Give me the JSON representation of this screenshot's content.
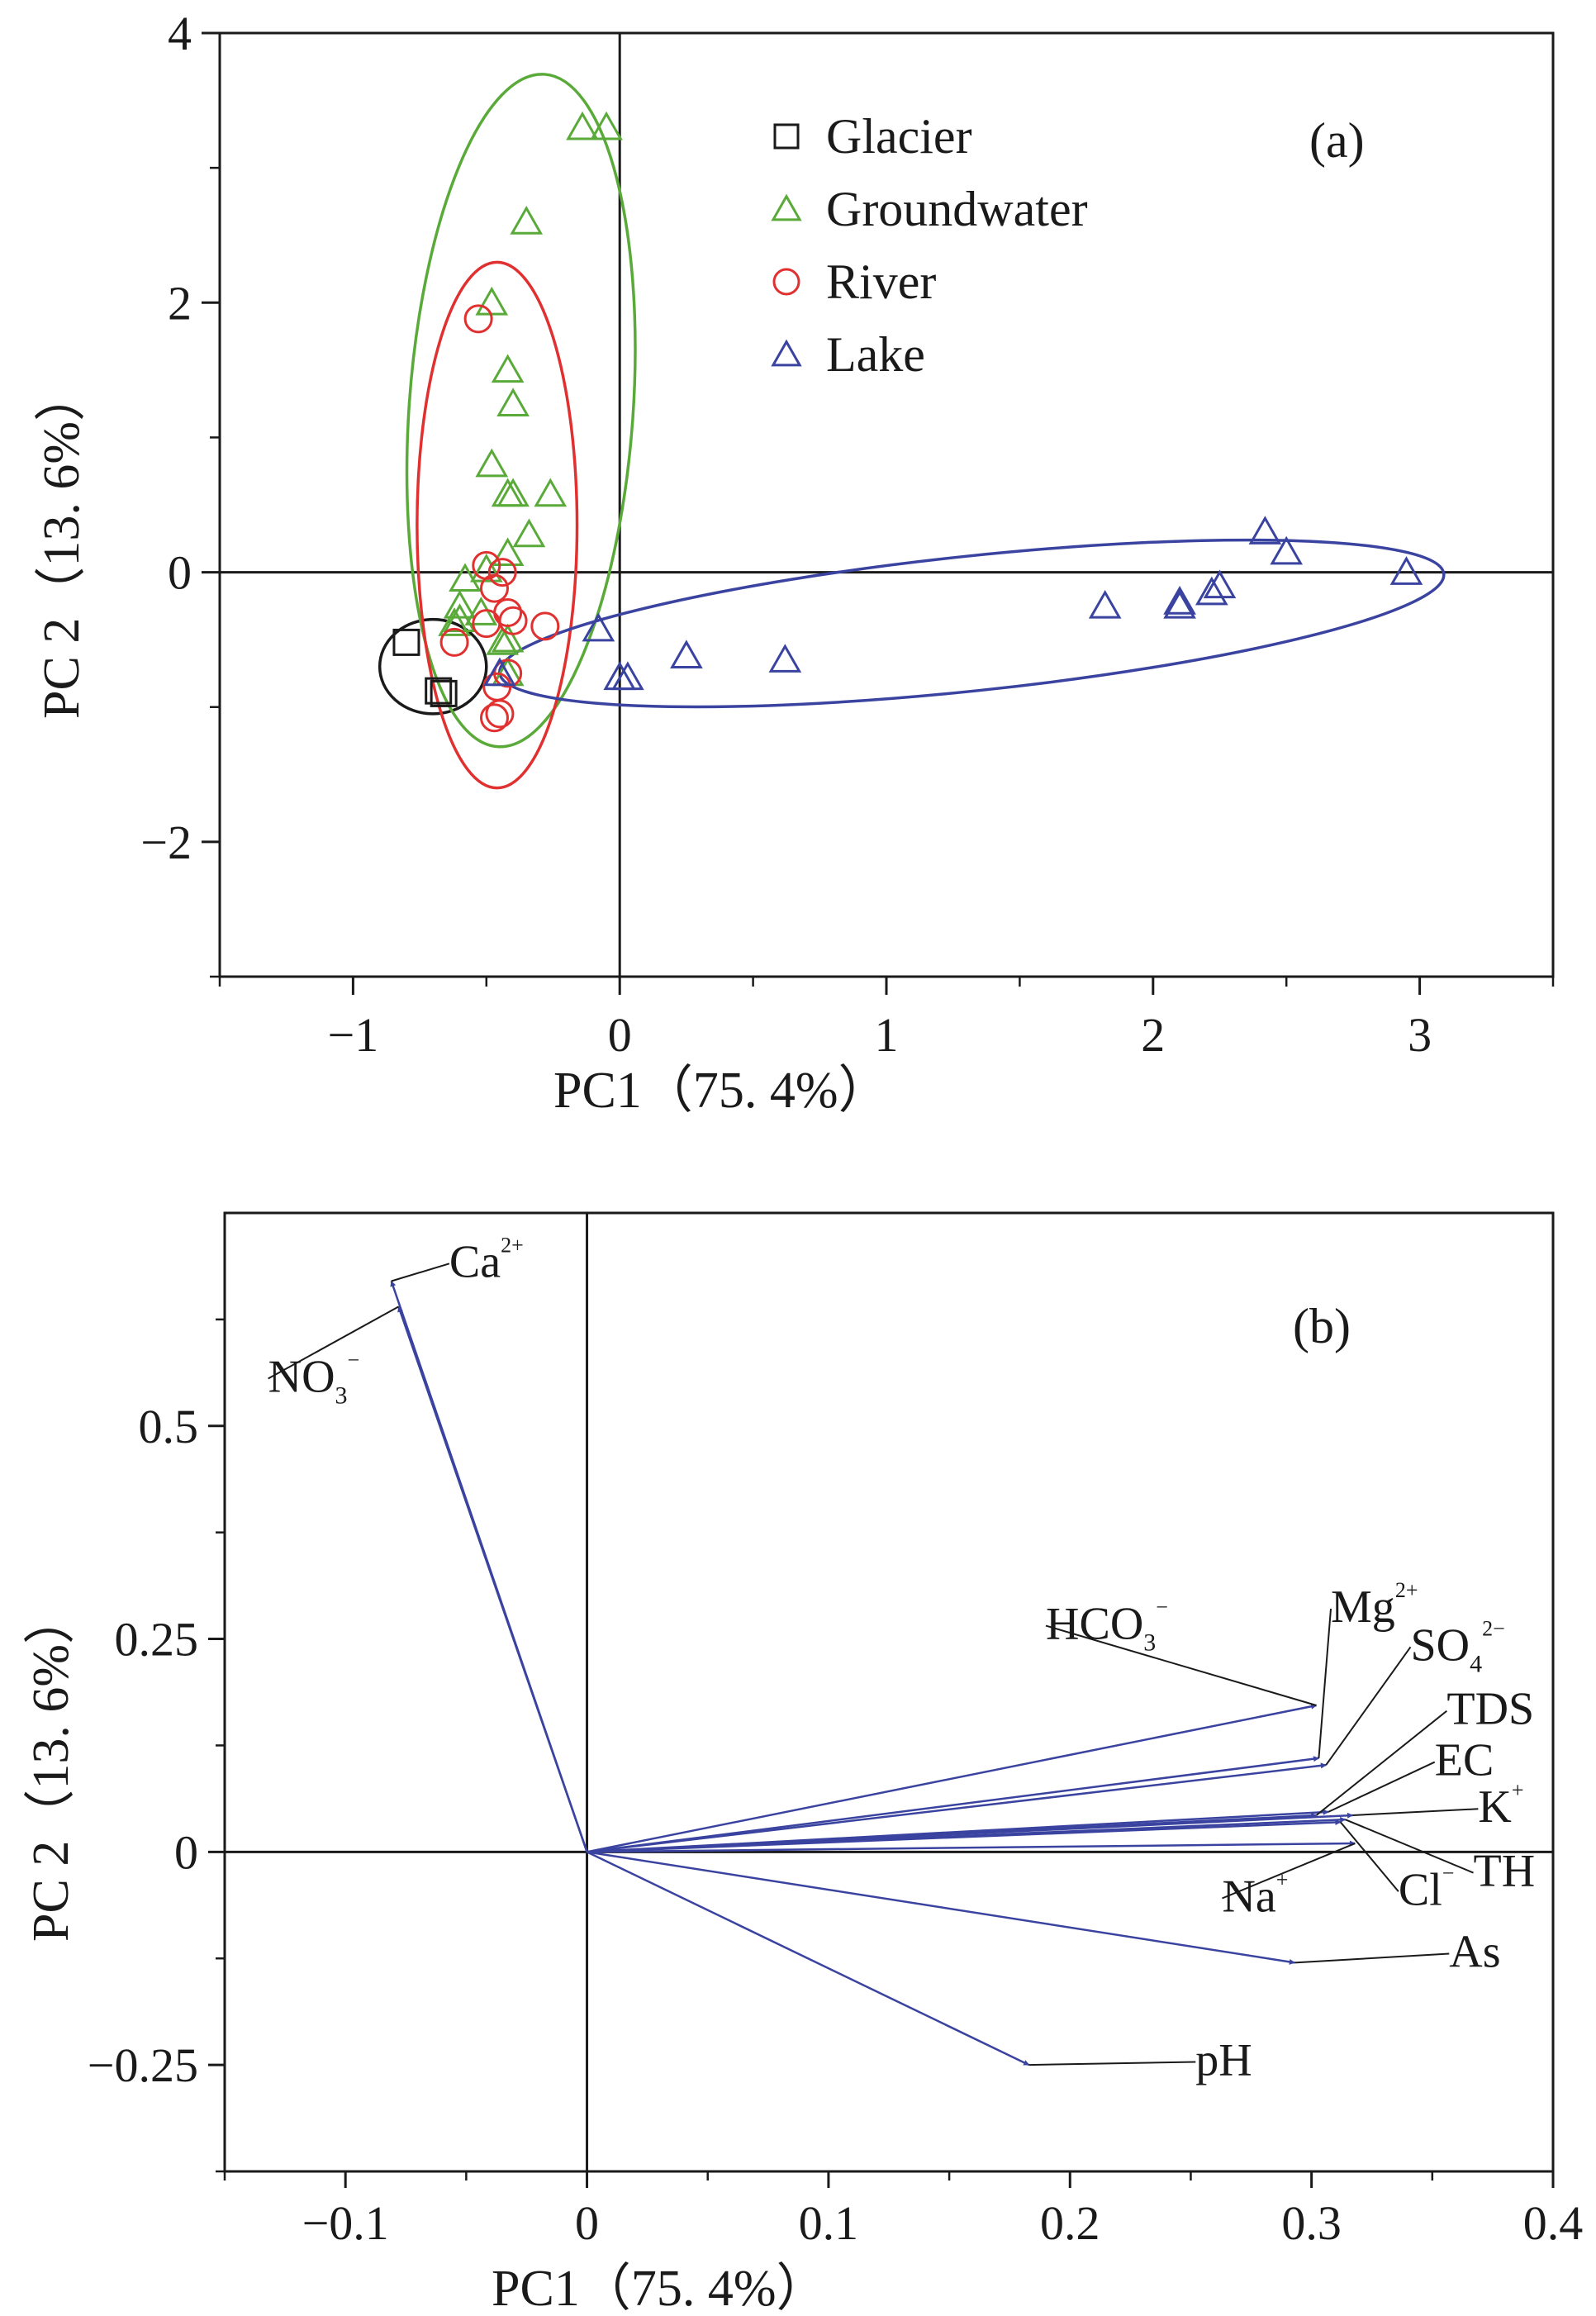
{
  "colors": {
    "glacier": "#1a1a1a",
    "groundwater": "#5aaa3a",
    "river": "#e03030",
    "lake": "#3a43a0",
    "axis": "#1a1a1a",
    "arrow": "#3a43a0"
  },
  "chart_data": [
    {
      "type": "scatter",
      "panel_label": "(a)",
      "xlabel": "PC1（75. 4%）",
      "ylabel": "PC 2（13. 6%）",
      "xlim": [
        -1.5,
        3.5
      ],
      "ylim": [
        -3,
        4
      ],
      "xticks": [
        -1,
        0,
        1,
        2,
        3
      ],
      "xtick_labels": [
        "−1",
        "0",
        "1",
        "2",
        "3"
      ],
      "yticks": [
        -2,
        0,
        2,
        4
      ],
      "ytick_labels": [
        "−2",
        "0",
        "2",
        "4"
      ],
      "legend": {
        "position": "top-right",
        "entries": [
          {
            "key": "glacier",
            "label": "Glacier",
            "marker": "square"
          },
          {
            "key": "groundwater",
            "label": "Groundwater",
            "marker": "triangle"
          },
          {
            "key": "river",
            "label": "River",
            "marker": "circle"
          },
          {
            "key": "lake",
            "label": "Lake",
            "marker": "triangle"
          }
        ]
      },
      "series": [
        {
          "key": "glacier",
          "name": "Glacier",
          "marker": "square",
          "points": [
            [
              -0.8,
              -0.52
            ],
            [
              -0.68,
              -0.88
            ],
            [
              -0.66,
              -0.9
            ]
          ],
          "ellipse": {
            "cx": -0.7,
            "cy": -0.7,
            "rx": 0.2,
            "ry": 0.35,
            "angle": 0
          }
        },
        {
          "key": "groundwater",
          "name": "Groundwater",
          "marker": "triangle",
          "points": [
            [
              -0.14,
              3.3
            ],
            [
              -0.05,
              3.3
            ],
            [
              -0.35,
              2.6
            ],
            [
              -0.48,
              2.0
            ],
            [
              -0.42,
              1.5
            ],
            [
              -0.4,
              1.25
            ],
            [
              -0.48,
              0.8
            ],
            [
              -0.42,
              0.58
            ],
            [
              -0.4,
              0.58
            ],
            [
              -0.26,
              0.58
            ],
            [
              -0.34,
              0.28
            ],
            [
              -0.42,
              0.14
            ],
            [
              -0.5,
              0.02
            ],
            [
              -0.58,
              -0.05
            ],
            [
              -0.6,
              -0.25
            ],
            [
              -0.52,
              -0.3
            ],
            [
              -0.6,
              -0.35
            ],
            [
              -0.62,
              -0.38
            ],
            [
              -0.42,
              -0.5
            ],
            [
              -0.44,
              -0.52
            ],
            [
              -0.42,
              -0.75
            ]
          ],
          "ellipse": {
            "cx": -0.37,
            "cy": 1.2,
            "rx": 0.42,
            "ry": 2.5,
            "angle": 4
          }
        },
        {
          "key": "river",
          "name": "River",
          "marker": "circle",
          "points": [
            [
              -0.53,
              1.88
            ],
            [
              -0.5,
              0.05
            ],
            [
              -0.44,
              0.0
            ],
            [
              -0.47,
              -0.12
            ],
            [
              -0.42,
              -0.3
            ],
            [
              -0.4,
              -0.36
            ],
            [
              -0.5,
              -0.38
            ],
            [
              -0.28,
              -0.4
            ],
            [
              -0.62,
              -0.52
            ],
            [
              -0.42,
              -0.75
            ],
            [
              -0.46,
              -0.85
            ],
            [
              -0.45,
              -1.05
            ],
            [
              -0.47,
              -1.08
            ]
          ],
          "ellipse": {
            "cx": -0.46,
            "cy": 0.35,
            "rx": 0.3,
            "ry": 1.95,
            "angle": 0
          }
        },
        {
          "key": "lake",
          "name": "Lake",
          "marker": "triangle",
          "points": [
            [
              2.42,
              0.3
            ],
            [
              2.5,
              0.15
            ],
            [
              2.95,
              0.0
            ],
            [
              2.25,
              -0.1
            ],
            [
              2.22,
              -0.15
            ],
            [
              2.1,
              -0.22
            ],
            [
              2.1,
              -0.25
            ],
            [
              1.82,
              -0.25
            ],
            [
              -0.08,
              -0.42
            ],
            [
              0.25,
              -0.62
            ],
            [
              0.62,
              -0.65
            ],
            [
              0.0,
              -0.78
            ],
            [
              0.03,
              -0.78
            ],
            [
              -0.45,
              -0.75
            ]
          ],
          "ellipse": {
            "cx": 1.32,
            "cy": -0.38,
            "rx": 1.78,
            "ry": 0.5,
            "angle": -6
          }
        }
      ]
    },
    {
      "type": "biplot",
      "panel_label": "(b)",
      "xlabel": "PC1（75. 4%）",
      "ylabel": "PC 2（13. 6%）",
      "xlim": [
        -0.15,
        0.4
      ],
      "ylim": [
        -0.375,
        0.75
      ],
      "xticks": [
        -0.1,
        0,
        0.1,
        0.2,
        0.3,
        0.4
      ],
      "xtick_labels": [
        "−0.1",
        "0",
        "0.1",
        "0.2",
        "0.3",
        "0.4"
      ],
      "yticks": [
        -0.25,
        0,
        0.25,
        0.5
      ],
      "ytick_labels": [
        "−0.25",
        "0",
        "0.25",
        "0.5"
      ],
      "loadings": [
        {
          "name": "Ca",
          "sup": "2+",
          "sub": "",
          "x": -0.081,
          "y": 0.67,
          "label_x": -0.057,
          "label_y": 0.675,
          "lead": true
        },
        {
          "name": "NO",
          "sup": "−",
          "sub": "3",
          "x": -0.078,
          "y": 0.64,
          "label_x": -0.132,
          "label_y": 0.54,
          "lead": true
        },
        {
          "name": "HCO",
          "sup": "−",
          "sub": "3",
          "x": 0.302,
          "y": 0.172,
          "label_x": 0.19,
          "label_y": 0.25,
          "lead": true
        },
        {
          "name": "Mg",
          "sup": "2+",
          "sub": "",
          "x": 0.303,
          "y": 0.11,
          "label_x": 0.308,
          "label_y": 0.27,
          "lead": true
        },
        {
          "name": "SO",
          "sup": "2−",
          "sub": "4",
          "x": 0.306,
          "y": 0.102,
          "label_x": 0.341,
          "label_y": 0.225,
          "lead": true
        },
        {
          "name": "TDS",
          "sup": "",
          "sub": "",
          "x": 0.302,
          "y": 0.043,
          "label_x": 0.356,
          "label_y": 0.15,
          "lead": true
        },
        {
          "name": "EC",
          "sup": "",
          "sub": "",
          "x": 0.307,
          "y": 0.047,
          "label_x": 0.351,
          "label_y": 0.09,
          "lead": true
        },
        {
          "name": "K",
          "sup": "+",
          "sub": "",
          "x": 0.317,
          "y": 0.043,
          "label_x": 0.369,
          "label_y": 0.035,
          "lead": true
        },
        {
          "name": "Cl",
          "sup": "−",
          "sub": "",
          "x": 0.312,
          "y": 0.035,
          "label_x": 0.336,
          "label_y": -0.062,
          "lead": true
        },
        {
          "name": "TH",
          "sup": "",
          "sub": "",
          "x": 0.314,
          "y": 0.038,
          "label_x": 0.367,
          "label_y": -0.04,
          "lead": true
        },
        {
          "name": "Na",
          "sup": "+",
          "sub": "",
          "x": 0.318,
          "y": 0.01,
          "label_x": 0.263,
          "label_y": -0.07,
          "lead": true
        },
        {
          "name": "As",
          "sup": "",
          "sub": "",
          "x": 0.293,
          "y": -0.13,
          "label_x": 0.357,
          "label_y": -0.135,
          "lead": true
        },
        {
          "name": "pH",
          "sup": "",
          "sub": "",
          "x": 0.183,
          "y": -0.25,
          "label_x": 0.252,
          "label_y": -0.262,
          "lead": true
        }
      ]
    }
  ]
}
